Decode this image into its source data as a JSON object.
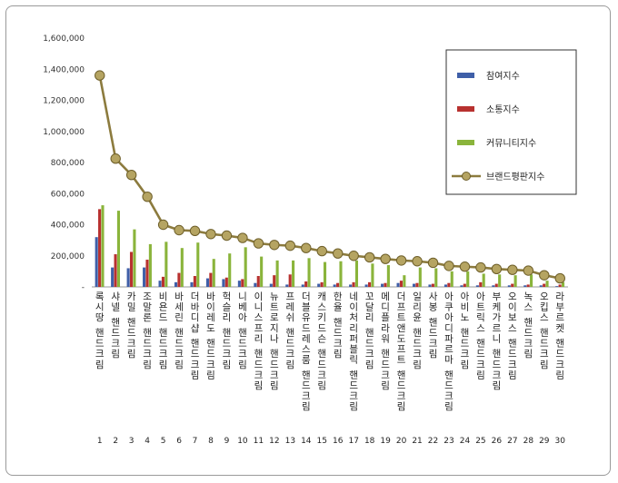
{
  "chart_data": {
    "type": "bar",
    "ylim": [
      0,
      1600000
    ],
    "yticks": [
      0,
      200000,
      400000,
      600000,
      800000,
      1000000,
      1200000,
      1400000,
      1600000
    ],
    "ytick_labels": [
      "-",
      "200,000",
      "400,000",
      "600,000",
      "800,000",
      "1,000,000",
      "1,200,000",
      "1,400,000",
      "1,600,000"
    ],
    "grid": false,
    "legend_position": "top-right",
    "ranks": [
      "1",
      "2",
      "3",
      "4",
      "5",
      "6",
      "7",
      "8",
      "9",
      "10",
      "11",
      "12",
      "13",
      "14",
      "15",
      "16",
      "17",
      "18",
      "19",
      "20",
      "21",
      "22",
      "23",
      "24",
      "25",
      "26",
      "27",
      "28",
      "29",
      "30"
    ],
    "categories": [
      "록시땅 핸드크림",
      "샤넬 핸드크림",
      "카밀 핸드크림",
      "조말론 핸드크림",
      "비욘드 핸드크림",
      "바세린 핸드크림",
      "더바디샵 핸드크림",
      "바이레도 핸드크림",
      "헉슬리 핸드크림",
      "니베아 핸드크림",
      "이니스프리 핸드크림",
      "뉴트로지나 핸드크림",
      "프레쉬 핸드크림",
      "더블유드레스룸 핸드크림",
      "캐스키드슨 핸드크림",
      "한율 핸드크림",
      "네이처리퍼블릭 핸드크림",
      "꼬달리 핸드크림",
      "메디플라워 핸드크림",
      "더프트앤도프트 핸드크림",
      "일리윤 핸드크림",
      "사봉 핸드크림",
      "아쿠아디파르마 핸드크림",
      "아비노 핸드크림",
      "아트릭스 핸드크림",
      "부케가르니 핸드크림",
      "오이보스 핸드크림",
      "녹스 핸드크림",
      "오킵스 핸드크림",
      "라부르켓 핸드크림"
    ],
    "series": [
      {
        "name": "참여지수",
        "type": "bar",
        "color": "#3f5fa8",
        "values": [
          320000,
          125000,
          120000,
          125000,
          40000,
          30000,
          30000,
          55000,
          50000,
          40000,
          25000,
          20000,
          15000,
          15000,
          20000,
          15000,
          15000,
          15000,
          20000,
          25000,
          20000,
          15000,
          15000,
          10000,
          10000,
          10000,
          10000,
          10000,
          10000,
          5000
        ]
      },
      {
        "name": "소통지수",
        "type": "bar",
        "color": "#b8312f",
        "values": [
          500000,
          210000,
          225000,
          175000,
          65000,
          90000,
          70000,
          90000,
          60000,
          50000,
          70000,
          75000,
          80000,
          35000,
          30000,
          25000,
          30000,
          30000,
          25000,
          40000,
          25000,
          20000,
          25000,
          20000,
          30000,
          20000,
          20000,
          15000,
          20000,
          15000
        ]
      },
      {
        "name": "커뮤니티지수",
        "type": "bar",
        "color": "#8ab43b",
        "values": [
          525000,
          490000,
          370000,
          275000,
          290000,
          250000,
          285000,
          180000,
          215000,
          255000,
          195000,
          170000,
          170000,
          185000,
          160000,
          165000,
          170000,
          150000,
          140000,
          75000,
          125000,
          120000,
          100000,
          100000,
          85000,
          80000,
          75000,
          80000,
          40000,
          30000
        ]
      },
      {
        "name": "브랜드평판지수",
        "type": "line",
        "color": "#8c7b3e",
        "values": [
          1360000,
          825000,
          720000,
          580000,
          400000,
          365000,
          360000,
          340000,
          330000,
          315000,
          280000,
          270000,
          265000,
          250000,
          230000,
          215000,
          200000,
          190000,
          180000,
          170000,
          165000,
          155000,
          135000,
          130000,
          125000,
          115000,
          110000,
          105000,
          75000,
          55000
        ]
      }
    ]
  }
}
